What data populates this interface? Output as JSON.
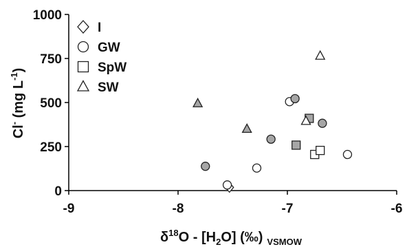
{
  "chart_data": {
    "type": "scatter",
    "xlabel": "δ18O - [H2O] (‰) VSMOW",
    "ylabel": "Cl- (mg L-1)",
    "xlim": [
      -9,
      -6
    ],
    "ylim": [
      0,
      1000
    ],
    "x_ticks": [
      "-9",
      "-8",
      "-7",
      "-6"
    ],
    "y_ticks": [
      "0",
      "250",
      "500",
      "750",
      "1000"
    ],
    "grid": false,
    "legend_position": "top-left",
    "series": [
      {
        "name": "I",
        "marker": "diamond",
        "points": [
          {
            "x": -7.53,
            "y": 18
          }
        ]
      },
      {
        "name": "GW",
        "marker": "circle",
        "points": [
          {
            "x": -7.55,
            "y": 32,
            "fill": "open"
          },
          {
            "x": -7.28,
            "y": 128,
            "fill": "open"
          },
          {
            "x": -6.98,
            "y": 505,
            "fill": "open"
          },
          {
            "x": -6.45,
            "y": 205,
            "fill": "open"
          },
          {
            "x": -7.75,
            "y": 138,
            "fill": "filled"
          },
          {
            "x": -7.15,
            "y": 292,
            "fill": "filled"
          },
          {
            "x": -6.93,
            "y": 522,
            "fill": "filled"
          },
          {
            "x": -6.68,
            "y": 382,
            "fill": "filled"
          }
        ]
      },
      {
        "name": "SpW",
        "marker": "square",
        "points": [
          {
            "x": -6.75,
            "y": 205,
            "fill": "open"
          },
          {
            "x": -6.7,
            "y": 228,
            "fill": "open"
          },
          {
            "x": -6.92,
            "y": 258,
            "fill": "filled"
          },
          {
            "x": -6.8,
            "y": 410,
            "fill": "filled"
          }
        ]
      },
      {
        "name": "SW",
        "marker": "triangle",
        "points": [
          {
            "x": -6.83,
            "y": 395,
            "fill": "open"
          },
          {
            "x": -6.7,
            "y": 765,
            "fill": "open"
          },
          {
            "x": -7.82,
            "y": 495,
            "fill": "filled"
          },
          {
            "x": -7.37,
            "y": 350,
            "fill": "filled"
          }
        ]
      }
    ]
  },
  "axes": {
    "x_title_main": "δ",
    "x_title_sup": "18",
    "x_title_mid": "O - [H",
    "x_title_sub2": "2",
    "x_title_end": "O] (‰)",
    "x_title_subscript": "VSMOW",
    "y_title_main": "Cl",
    "y_title_sup1": "-",
    "y_title_mid": " (mg L",
    "y_title_sup2": "-1",
    "y_title_end": ")"
  },
  "colors": {
    "open_fill": "#ffffff",
    "filled_fill": "#a6a6a6",
    "stroke": "#222222",
    "axis": "#000000"
  }
}
